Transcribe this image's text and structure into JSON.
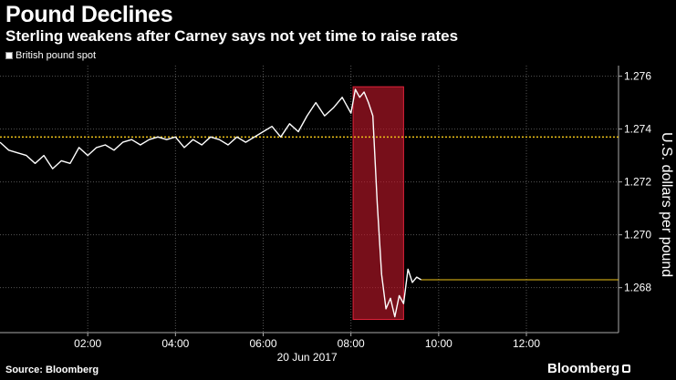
{
  "chart_data": {
    "type": "line",
    "title": "Pound Declines",
    "subtitle": "Sterling weakens after Carney says not yet time to raise rates",
    "ylabel": "U.S. dollars per pound",
    "x_caption": "20 Jun 2017",
    "legend_position": "top-left",
    "grid": true,
    "xlim": [
      0,
      14.1
    ],
    "ylim": [
      1.2663,
      1.2764
    ],
    "x_ticks": [
      {
        "value": 2,
        "label": "02:00"
      },
      {
        "value": 4,
        "label": "04:00"
      },
      {
        "value": 6,
        "label": "06:00"
      },
      {
        "value": 8,
        "label": "08:00"
      },
      {
        "value": 10,
        "label": "10:00"
      },
      {
        "value": 12,
        "label": "12:00"
      }
    ],
    "y_ticks": [
      {
        "value": 1.268,
        "label": "1.268"
      },
      {
        "value": 1.27,
        "label": "1.270"
      },
      {
        "value": 1.272,
        "label": "1.272"
      },
      {
        "value": 1.274,
        "label": "1.274"
      },
      {
        "value": 1.276,
        "label": "1.276"
      }
    ],
    "reference_line": {
      "value": 1.2737,
      "color": "#f0c419"
    },
    "last_value_line": {
      "value": 1.2683,
      "from_x": 9.6,
      "color": "#f0c419"
    },
    "highlight": {
      "x_start": 8.05,
      "x_end": 9.2,
      "y_low": 1.2668,
      "y_high": 1.2756,
      "color": "#c0182a"
    },
    "series": [
      {
        "name": "British pound spot",
        "color": "#ffffff",
        "x": [
          0.0,
          0.2,
          0.4,
          0.6,
          0.8,
          1.0,
          1.2,
          1.4,
          1.6,
          1.8,
          2.0,
          2.2,
          2.4,
          2.6,
          2.8,
          3.0,
          3.2,
          3.4,
          3.6,
          3.8,
          4.0,
          4.2,
          4.4,
          4.6,
          4.8,
          5.0,
          5.2,
          5.4,
          5.6,
          5.8,
          6.0,
          6.2,
          6.4,
          6.6,
          6.8,
          7.0,
          7.2,
          7.4,
          7.6,
          7.8,
          8.0,
          8.1,
          8.2,
          8.3,
          8.4,
          8.5,
          8.6,
          8.7,
          8.8,
          8.9,
          9.0,
          9.1,
          9.2,
          9.3,
          9.4,
          9.5,
          9.6
        ],
        "values": [
          1.2735,
          1.2732,
          1.2731,
          1.273,
          1.2727,
          1.273,
          1.2725,
          1.2728,
          1.2727,
          1.2733,
          1.273,
          1.2733,
          1.2734,
          1.2732,
          1.2735,
          1.2736,
          1.2734,
          1.2736,
          1.2737,
          1.2736,
          1.2737,
          1.2733,
          1.2736,
          1.2734,
          1.2737,
          1.2736,
          1.2734,
          1.2737,
          1.2735,
          1.2737,
          1.2739,
          1.2741,
          1.2737,
          1.2742,
          1.2739,
          1.2745,
          1.275,
          1.2745,
          1.2748,
          1.2752,
          1.2746,
          1.2755,
          1.2752,
          1.2754,
          1.275,
          1.2745,
          1.2712,
          1.2685,
          1.2672,
          1.2676,
          1.2669,
          1.2677,
          1.2674,
          1.2687,
          1.2682,
          1.2684,
          1.2683
        ]
      }
    ]
  },
  "footer": {
    "source": "Source: Bloomberg",
    "brand": "Bloomberg"
  }
}
